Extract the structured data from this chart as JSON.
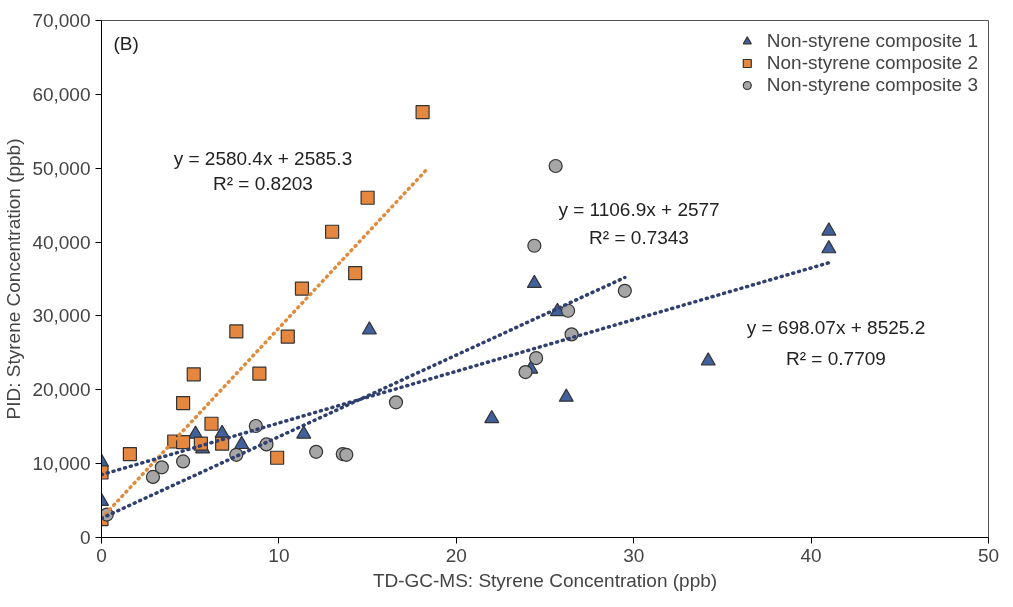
{
  "chart_data": {
    "type": "scatter",
    "xlabel": "TD-GC-MS: Styrene Concentration (ppb)",
    "ylabel": "PID: Styrene Concentration (ppb)",
    "xlim": [
      0,
      50
    ],
    "ylim": [
      0,
      70000
    ],
    "xticks": [
      0,
      10,
      20,
      30,
      40,
      50
    ],
    "yticks": [
      {
        "value": 0,
        "label": "0"
      },
      {
        "value": 10000,
        "label": "10,000"
      },
      {
        "value": 20000,
        "label": "20,000"
      },
      {
        "value": 30000,
        "label": "30,000"
      },
      {
        "value": 40000,
        "label": "40,000"
      },
      {
        "value": 50000,
        "label": "50,000"
      },
      {
        "value": 60000,
        "label": "60,000"
      },
      {
        "value": 70000,
        "label": "70,000"
      }
    ],
    "grid": false,
    "legend": "top right",
    "annotations": [
      "(B)",
      "y = 2580.4x + 2585.3",
      "R² = 0.8203",
      "y = 1106.9x + 2577",
      "R² = 0.7343",
      "y = 698.07x + 8525.2",
      "R² = 0.7709"
    ],
    "series": [
      {
        "name": "Non-styrene composite 1",
        "color": "#41609c",
        "marker": "triangle",
        "x": [
          0,
          0,
          5.3,
          5.7,
          6.8,
          7.9,
          11.4,
          15.1,
          24.4,
          25.7,
          26.2,
          22.0,
          34.2,
          41.0,
          41.0,
          24.2
        ],
        "values": [
          10200,
          4900,
          14000,
          12000,
          14100,
          12600,
          14000,
          28100,
          34400,
          30600,
          19000,
          16100,
          23900,
          41500,
          39100,
          22800
        ]
      },
      {
        "name": "Non-styrene composite 2",
        "color": "#e5873f",
        "marker": "square",
        "x": [
          0,
          0,
          1.6,
          4.1,
          4.6,
          4.6,
          5.2,
          5.6,
          6.2,
          6.8,
          7.6,
          8.9,
          9.9,
          10.5,
          11.3,
          13.0,
          14.3,
          15.0,
          18.1
        ],
        "values": [
          8800,
          2500,
          11300,
          13000,
          12900,
          18200,
          22100,
          12700,
          15400,
          12700,
          27900,
          22200,
          10800,
          27200,
          33700,
          41400,
          35800,
          46000,
          57600
        ]
      },
      {
        "name": "Non-styrene composite 3",
        "color": "#a6a6a6",
        "marker": "circle",
        "x": [
          0.3,
          2.9,
          3.4,
          4.6,
          7.6,
          8.7,
          9.3,
          12.1,
          13.6,
          13.8,
          16.6,
          25.6,
          24.4,
          29.5,
          26.3,
          26.5,
          24.5,
          23.9
        ],
        "values": [
          3100,
          8200,
          9500,
          10300,
          11200,
          15100,
          12600,
          11600,
          11300,
          11200,
          18300,
          50300,
          39500,
          33400,
          30700,
          27500,
          24300,
          22400
        ]
      },
      {
        "type": "line",
        "color": "#e08a3c",
        "line_style": "dotted",
        "x": [
          0,
          18.4
        ],
        "values": [
          2600,
          50000
        ]
      },
      {
        "type": "line",
        "color": "#2f3f6f",
        "line_style": "dotted",
        "x": [
          0,
          29.5
        ],
        "values": [
          2600,
          35200
        ]
      },
      {
        "type": "line",
        "color": "#2f3f6f",
        "line_style": "dotted",
        "x": [
          0,
          41
        ],
        "values": [
          8500,
          37200
        ]
      }
    ]
  }
}
